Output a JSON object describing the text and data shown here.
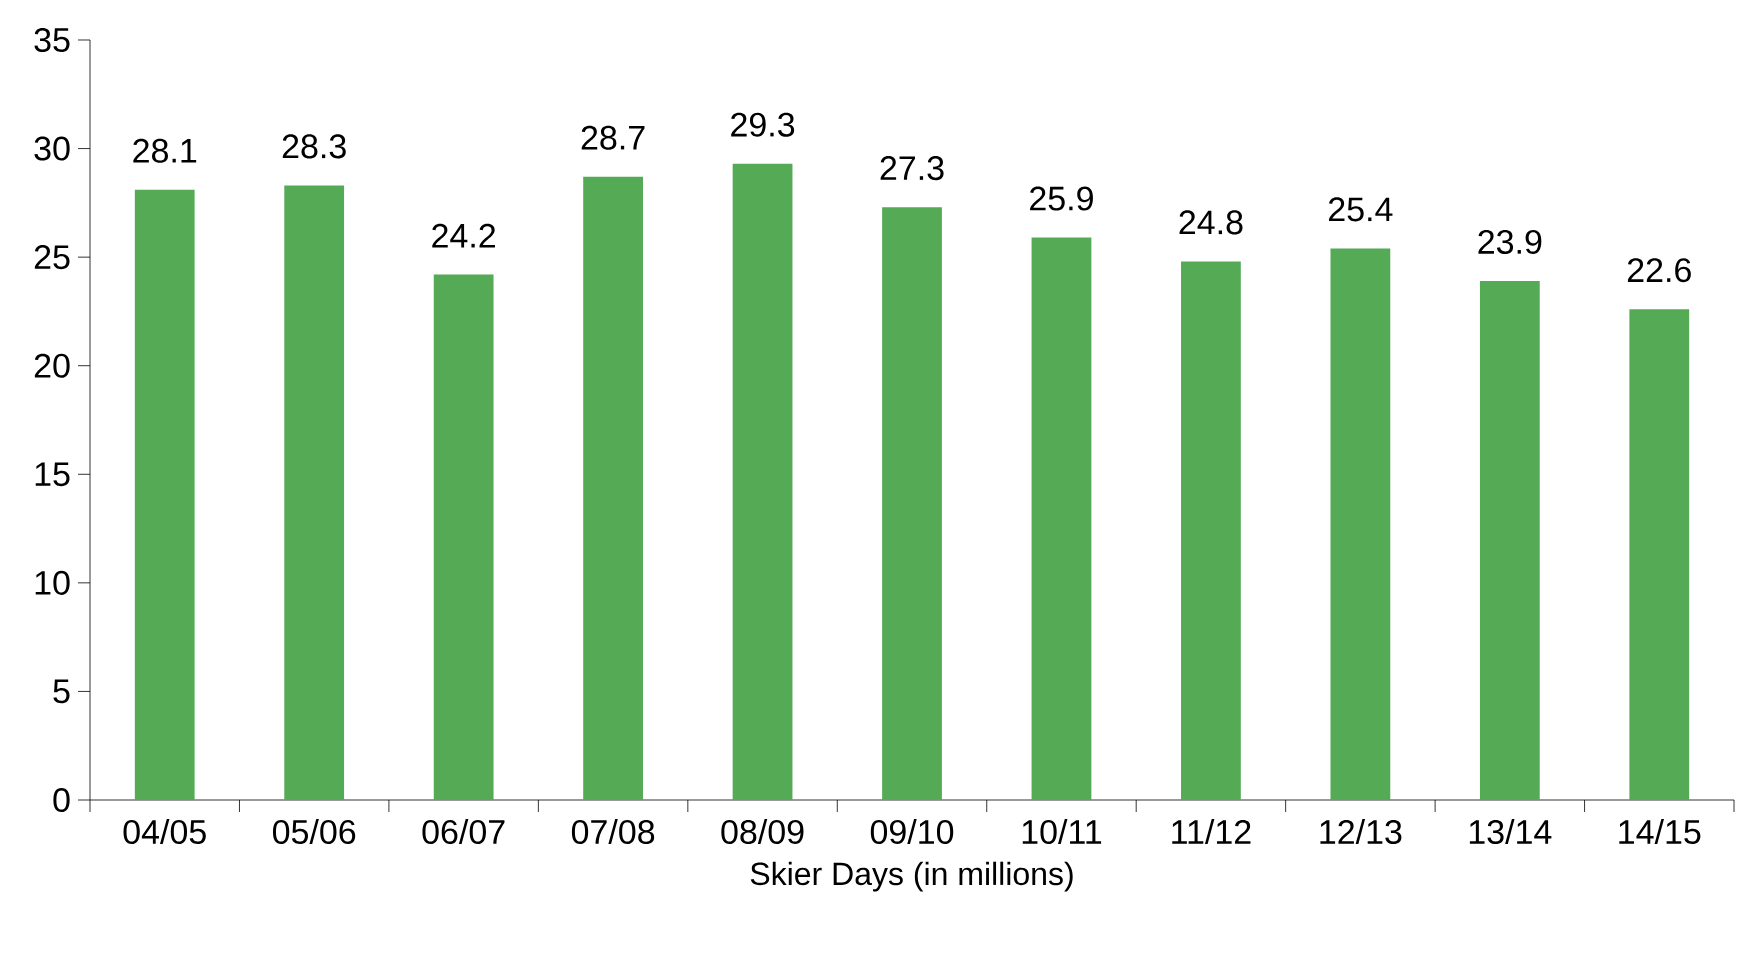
{
  "chart_data": {
    "type": "bar",
    "xlabel": "Skier Days (in  millions)",
    "categories": [
      "04/05",
      "05/06",
      "06/07",
      "07/08",
      "08/09",
      "09/10",
      "10/11",
      "11/12",
      "12/13",
      "13/14",
      "14/15"
    ],
    "values": [
      28.1,
      28.3,
      24.2,
      28.7,
      29.3,
      27.3,
      25.9,
      24.8,
      25.4,
      23.9,
      22.6
    ],
    "color": "#55aa55",
    "ylim": [
      0,
      35
    ],
    "yticks": [
      0,
      5,
      10,
      15,
      20,
      25,
      30,
      35
    ],
    "data_labels": true
  }
}
